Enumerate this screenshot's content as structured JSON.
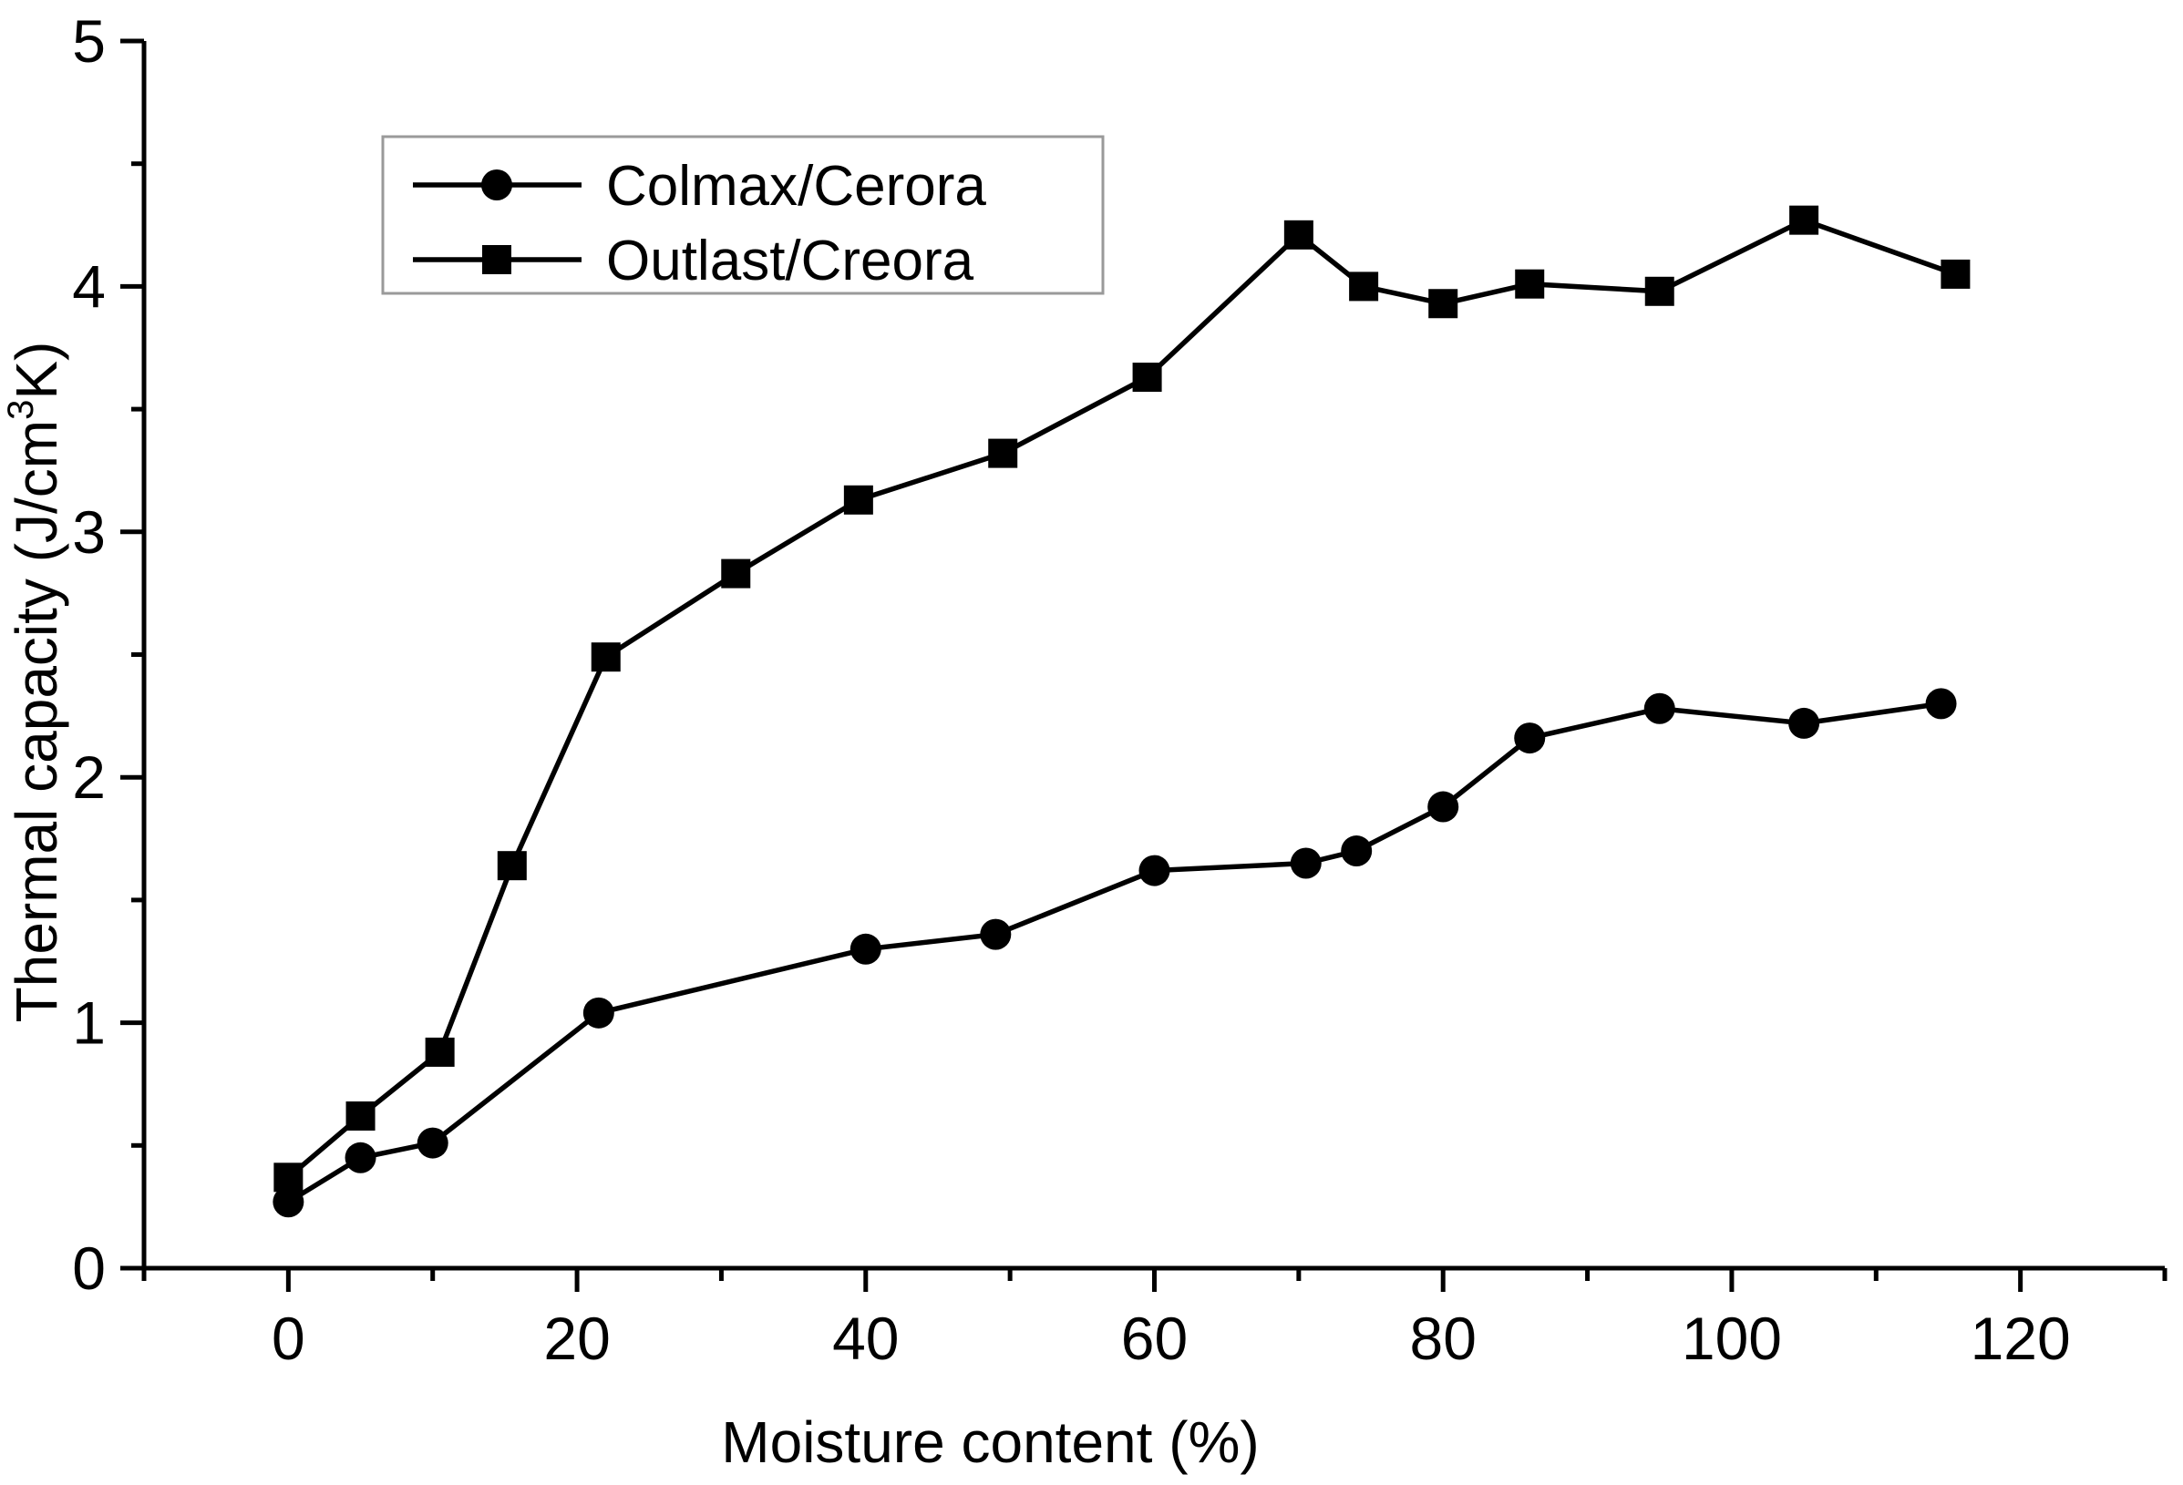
{
  "chart_data": {
    "type": "line",
    "title": "",
    "xlabel": "Moisture content (%)",
    "ylabel_main": "Thermal capacity (J/cm",
    "ylabel_sup": "3",
    "ylabel_tail": "K)",
    "xlim": [
      -10,
      130
    ],
    "ylim": [
      0,
      5
    ],
    "x_ticks": [
      0,
      20,
      40,
      60,
      80,
      100,
      120
    ],
    "y_ticks": [
      0,
      1,
      2,
      3,
      4,
      5
    ],
    "legend_position": "top-left",
    "series": [
      {
        "name": "Colmax/Cerora",
        "marker": "circle",
        "x": [
          0,
          5,
          10,
          21.5,
          40,
          49,
          60,
          70.5,
          74,
          80,
          86,
          95,
          105,
          114.5
        ],
        "y": [
          0.27,
          0.45,
          0.51,
          1.04,
          1.3,
          1.36,
          1.62,
          1.65,
          1.7,
          1.88,
          2.16,
          2.28,
          2.22,
          2.3
        ]
      },
      {
        "name": "Outlast/Creora",
        "marker": "square",
        "x": [
          0,
          5,
          10.5,
          15.5,
          22,
          31,
          39.5,
          49.5,
          59.5,
          70,
          74.5,
          80,
          86,
          95,
          105,
          115.5
        ],
        "y": [
          0.37,
          0.62,
          0.88,
          1.64,
          2.49,
          2.83,
          3.13,
          3.32,
          3.63,
          4.21,
          4.0,
          3.93,
          4.01,
          3.98,
          4.27,
          4.05
        ]
      }
    ]
  }
}
